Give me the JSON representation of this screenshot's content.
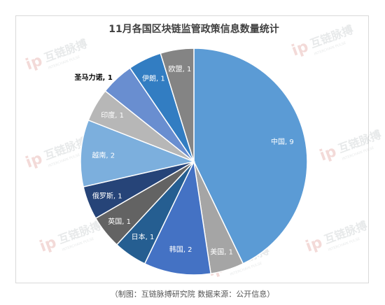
{
  "chart_data": {
    "type": "pie",
    "title": "11月各国区块链监管政策信息数量统计",
    "start_angle_deg": 0,
    "direction": "clockwise",
    "slices": [
      {
        "label": "中国",
        "value": 9,
        "color": "#5b9bd5"
      },
      {
        "label": "美国",
        "value": 1,
        "color": "#a5a5a5"
      },
      {
        "label": "韩国",
        "value": 2,
        "color": "#4472c4"
      },
      {
        "label": "日本",
        "value": 1,
        "color": "#255e91"
      },
      {
        "label": "英国",
        "value": 1,
        "color": "#636363"
      },
      {
        "label": "俄罗斯",
        "value": 1,
        "color": "#264478"
      },
      {
        "label": "越南",
        "value": 2,
        "color": "#7cafdd"
      },
      {
        "label": "印度",
        "value": 1,
        "color": "#b7b7b7"
      },
      {
        "label": "圣马力诺",
        "value": 1,
        "color": "#698ed0"
      },
      {
        "label": "伊朗",
        "value": 1,
        "color": "#327dc2"
      },
      {
        "label": "欧盟",
        "value": 1,
        "color": "#848484"
      }
    ]
  },
  "watermark": {
    "text": "互链脉搏",
    "subtext": "INTERCHAIN PULSE"
  },
  "caption": "（制图：互链脉搏研究院   数据来源：公开信息）"
}
